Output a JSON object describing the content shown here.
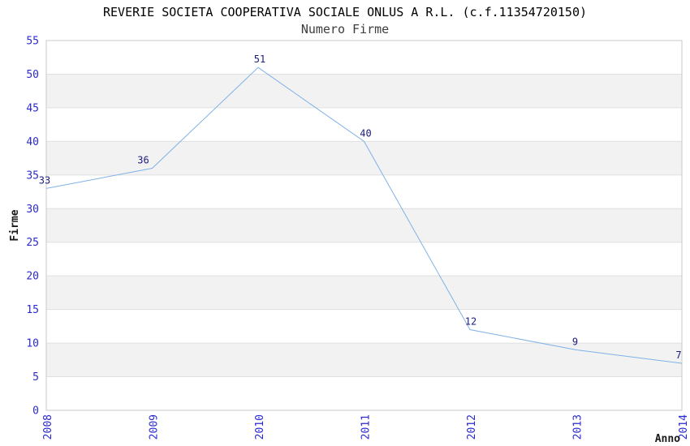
{
  "chart_data": {
    "type": "line",
    "title": "REVERIE SOCIETA COOPERATIVA SOCIALE ONLUS A R.L. (c.f.11354720150)",
    "subtitle": "Numero Firme",
    "xlabel": "Anno",
    "ylabel": "Firme",
    "categories": [
      "2008",
      "2009",
      "2010",
      "2011",
      "2012",
      "2013",
      "2014"
    ],
    "values": [
      33,
      36,
      51,
      40,
      12,
      9,
      7
    ],
    "point_labels": [
      "33",
      "36",
      "51",
      "40",
      "12",
      "9",
      "7"
    ],
    "ytick_labels": [
      "0",
      "5",
      "10",
      "15",
      "20",
      "25",
      "30",
      "35",
      "40",
      "45",
      "50",
      "55"
    ],
    "ylim": [
      0,
      55
    ],
    "ytick_step": 5,
    "grid": "alternating-horizontal-bands",
    "legend_position": "none",
    "colors": {
      "line": "#7fb2e6",
      "tick_label": "#2a2ad0",
      "point_label": "#1a1a80",
      "band_fill": "#f2f2f2",
      "gridline": "#e0e0e0",
      "plot_border": "#c9c9c9",
      "title": "#000000",
      "subtitle": "#3d3d3d",
      "axis_title": "#1a1a1a",
      "background": "#ffffff"
    }
  }
}
